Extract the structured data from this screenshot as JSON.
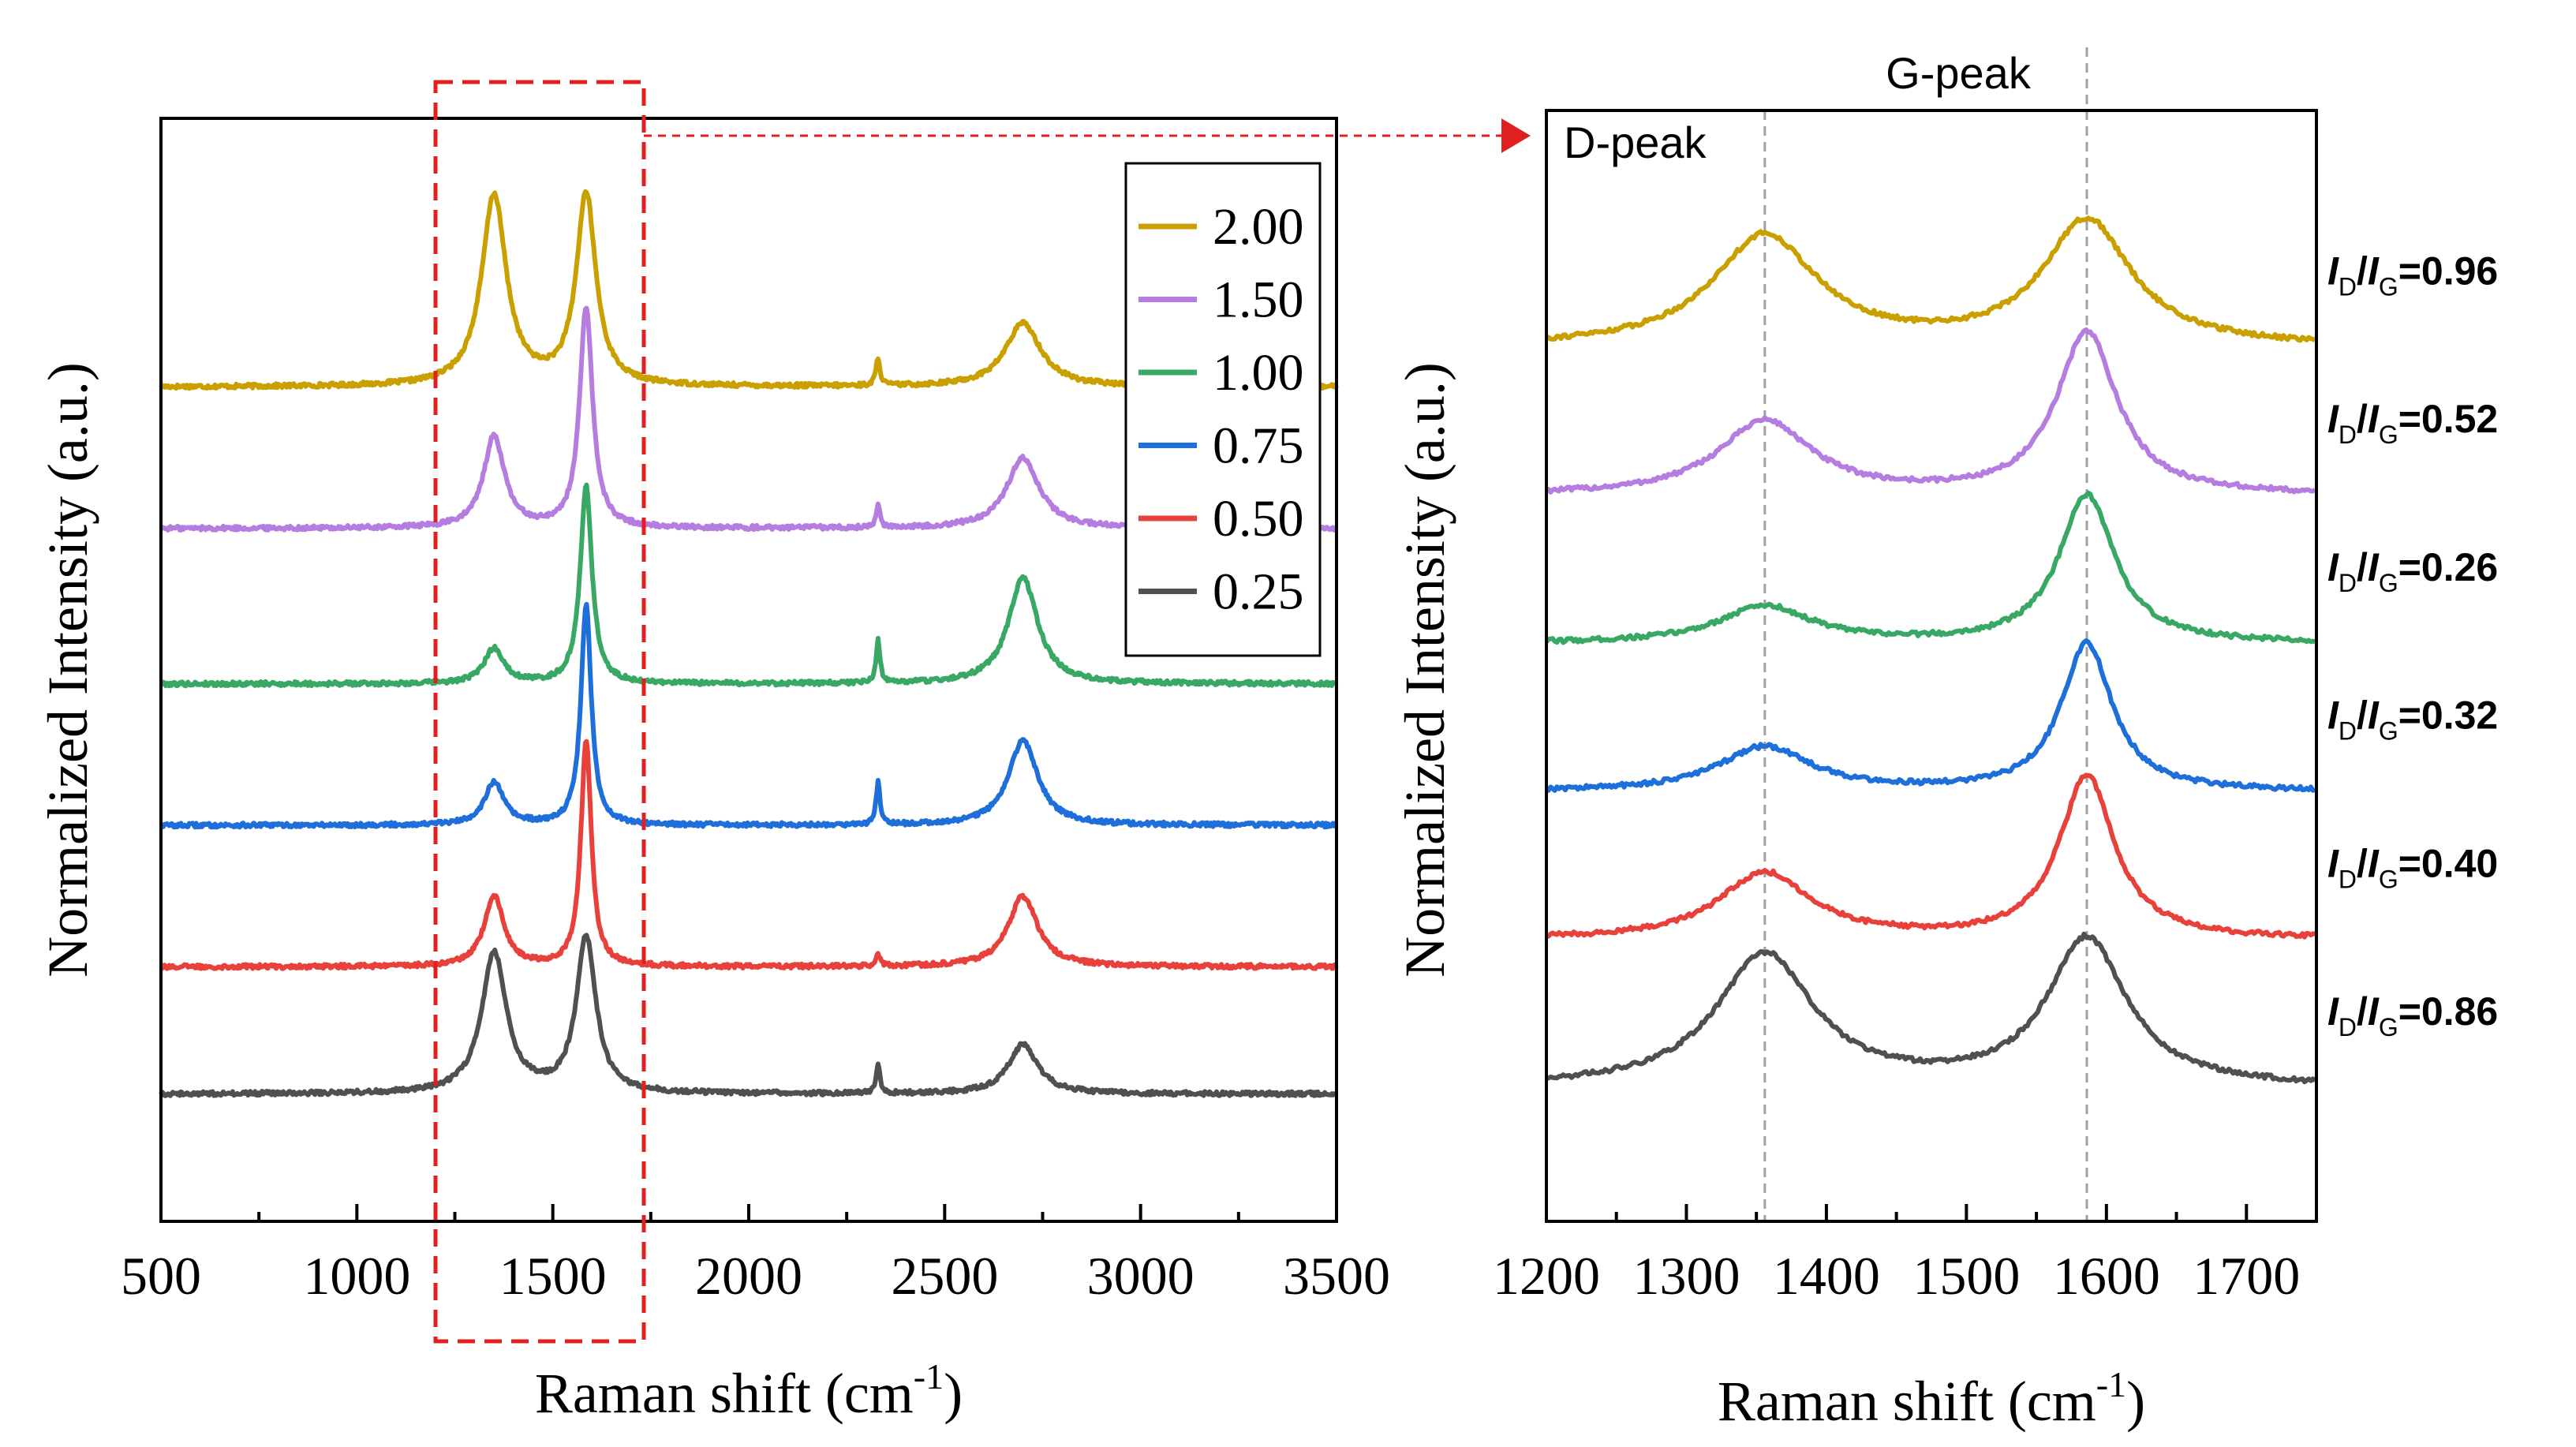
{
  "chart_data": [
    {
      "type": "line",
      "panel": "full-spectrum",
      "xlabel": "Raman shift (cm",
      "xlabel_sup": "-1",
      "xlabel_close": ")",
      "ylabel": "Normalized Intensity (a.u.)",
      "xlim": [
        500,
        3500
      ],
      "x_ticks": [
        500,
        1000,
        1500,
        2000,
        2500,
        3000,
        3500
      ],
      "x_tick_labels": [
        "500",
        "1000",
        "1500",
        "2000",
        "2500",
        "3000",
        "3500"
      ],
      "legend": {
        "placement": "top-right",
        "entries": [
          "2.00",
          "1.50",
          "1.00",
          "0.75",
          "0.50",
          "0.25"
        ]
      },
      "zoom_region_x": [
        1200,
        1740
      ],
      "series": [
        {
          "name": "2.00",
          "color": "#c9a000",
          "baseline": 5.3,
          "features": [
            [
              1350,
              1.35,
              38
            ],
            [
              1585,
              1.35,
              30
            ],
            [
              2330,
              0.2,
              6
            ],
            [
              2700,
              0.45,
              55
            ]
          ]
        },
        {
          "name": "1.50",
          "color": "#b57de0",
          "baseline": 4.3,
          "features": [
            [
              1350,
              0.65,
              32
            ],
            [
              1585,
              1.55,
              20
            ],
            [
              2330,
              0.15,
              6
            ],
            [
              2700,
              0.5,
              50
            ]
          ]
        },
        {
          "name": "1.00",
          "color": "#3aa865",
          "baseline": 3.2,
          "features": [
            [
              1350,
              0.25,
              30
            ],
            [
              1585,
              1.4,
              18
            ],
            [
              2330,
              0.3,
              6
            ],
            [
              2700,
              0.75,
              45
            ]
          ]
        },
        {
          "name": "0.75",
          "color": "#1f6fdb",
          "baseline": 2.2,
          "features": [
            [
              1350,
              0.3,
              30
            ],
            [
              1585,
              1.55,
              16
            ],
            [
              2330,
              0.3,
              6
            ],
            [
              2700,
              0.6,
              45
            ]
          ]
        },
        {
          "name": "0.50",
          "color": "#e8413c",
          "baseline": 1.2,
          "features": [
            [
              1350,
              0.5,
              30
            ],
            [
              1585,
              1.6,
              16
            ],
            [
              2330,
              0.08,
              6
            ],
            [
              2700,
              0.5,
              45
            ]
          ]
        },
        {
          "name": "0.25",
          "color": "#505050",
          "baseline": 0.3,
          "features": [
            [
              1350,
              1.0,
              38
            ],
            [
              1585,
              1.1,
              30
            ],
            [
              2330,
              0.2,
              6
            ],
            [
              2700,
              0.35,
              45
            ]
          ]
        }
      ]
    },
    {
      "type": "line",
      "panel": "zoom",
      "xlabel": "Raman shift (cm",
      "xlabel_sup": "-1",
      "xlabel_close": ")",
      "ylabel": "Normalized Intensity (a.u.)",
      "xlim": [
        1200,
        1750
      ],
      "x_ticks": [
        1200,
        1300,
        1400,
        1500,
        1600,
        1700
      ],
      "x_tick_labels": [
        "1200",
        "1300",
        "1400",
        "1500",
        "1600",
        "1700"
      ],
      "annotations": {
        "d_peak": "D-peak",
        "g_peak": "G-peak"
      },
      "d_peak_position": 1356,
      "g_peak_position": 1586,
      "ratio_prefix": "I",
      "ratio_sub_d": "D",
      "ratio_sub_g": "G",
      "series": [
        {
          "name": "2.00",
          "color": "#c9a000",
          "ratio": "0.96",
          "baseline": 5.3,
          "features": [
            [
              1356,
              0.75,
              45
            ],
            [
              1586,
              0.85,
              38
            ]
          ]
        },
        {
          "name": "1.50",
          "color": "#b57de0",
          "ratio": "0.52",
          "baseline": 4.3,
          "features": [
            [
              1356,
              0.5,
              40
            ],
            [
              1586,
              1.1,
              26
            ]
          ]
        },
        {
          "name": "1.00",
          "color": "#3aa865",
          "ratio": "0.26",
          "baseline": 3.3,
          "features": [
            [
              1356,
              0.25,
              40
            ],
            [
              1586,
              1.0,
              24
            ]
          ]
        },
        {
          "name": "0.75",
          "color": "#1f6fdb",
          "ratio": "0.32",
          "baseline": 2.3,
          "features": [
            [
              1356,
              0.3,
              40
            ],
            [
              1586,
              1.0,
              22
            ]
          ]
        },
        {
          "name": "0.50",
          "color": "#e8413c",
          "ratio": "0.40",
          "baseline": 1.3,
          "features": [
            [
              1356,
              0.45,
              40
            ],
            [
              1586,
              1.1,
              24
            ]
          ]
        },
        {
          "name": "0.25",
          "color": "#505050",
          "ratio": "0.86",
          "baseline": 0.3,
          "features": [
            [
              1356,
              0.9,
              42
            ],
            [
              1586,
              1.0,
              34
            ]
          ]
        }
      ]
    }
  ],
  "colors": {
    "zoom_box": "#e02020",
    "axis": "#000000",
    "peak_guide": "#a0a0a0"
  }
}
